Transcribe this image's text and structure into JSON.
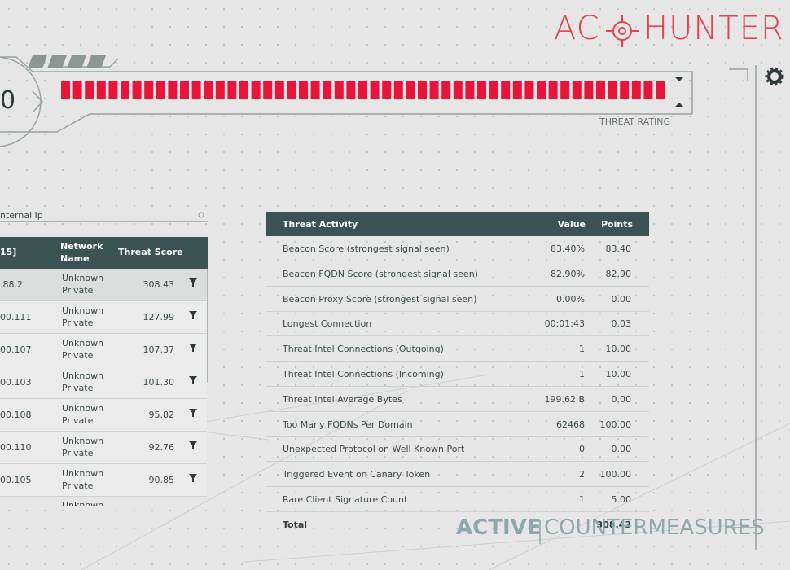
{
  "logo": {
    "left": "AC",
    "right": "HUNTER"
  },
  "gauge": {
    "score": "0",
    "label": "THREAT RATING"
  },
  "search": {
    "placeholder": "nternal ip"
  },
  "hosts_table": {
    "headers": [
      "15]",
      "Network Name",
      "Threat Score"
    ],
    "rows": [
      [
        ".88.2",
        "Unknown Private",
        "308.43"
      ],
      [
        "00.111",
        "Unknown Private",
        "127.99"
      ],
      [
        "00.107",
        "Unknown Private",
        "107.37"
      ],
      [
        "00.103",
        "Unknown Private",
        "101.30"
      ],
      [
        "00.108",
        "Unknown Private",
        "95.82"
      ],
      [
        "00.110",
        "Unknown Private",
        "92.76"
      ],
      [
        "00.105",
        "Unknown Private",
        "90.85"
      ]
    ],
    "partial_row": "Unknown"
  },
  "activity_table": {
    "headers": [
      "Threat Activity",
      "Value",
      "Points"
    ],
    "rows": [
      [
        "Beacon Score (strongest signal seen)",
        "83.40%",
        "83.40"
      ],
      [
        "Beacon FQDN Score (strongest signal seen)",
        "82.90%",
        "82.90"
      ],
      [
        "Beacon Proxy Score (strongest signal seen)",
        "0.00%",
        "0.00"
      ],
      [
        "Longest Connection",
        "00:01:43",
        "0.03"
      ],
      [
        "Threat Intel Connections (Outgoing)",
        "1",
        "10.00"
      ],
      [
        "Threat Intel Connections (Incoming)",
        "1",
        "10.00"
      ],
      [
        "Threat Intel Average Bytes",
        "199.62 B",
        "0.00"
      ],
      [
        "Too Many FQDNs Per Domain",
        "62468",
        "100.00"
      ],
      [
        "Unexpected Protocol on Well Known Port",
        "0",
        "0.00"
      ],
      [
        "Triggered Event on Canary Token",
        "2",
        "100.00"
      ],
      [
        "Rare Client Signature Count",
        "1",
        "5.00"
      ]
    ],
    "total": {
      "label": "Total",
      "points": "308.43"
    }
  },
  "footer_logo": {
    "left": "ACTIVE",
    "right": "COUNTERMEASURES"
  }
}
